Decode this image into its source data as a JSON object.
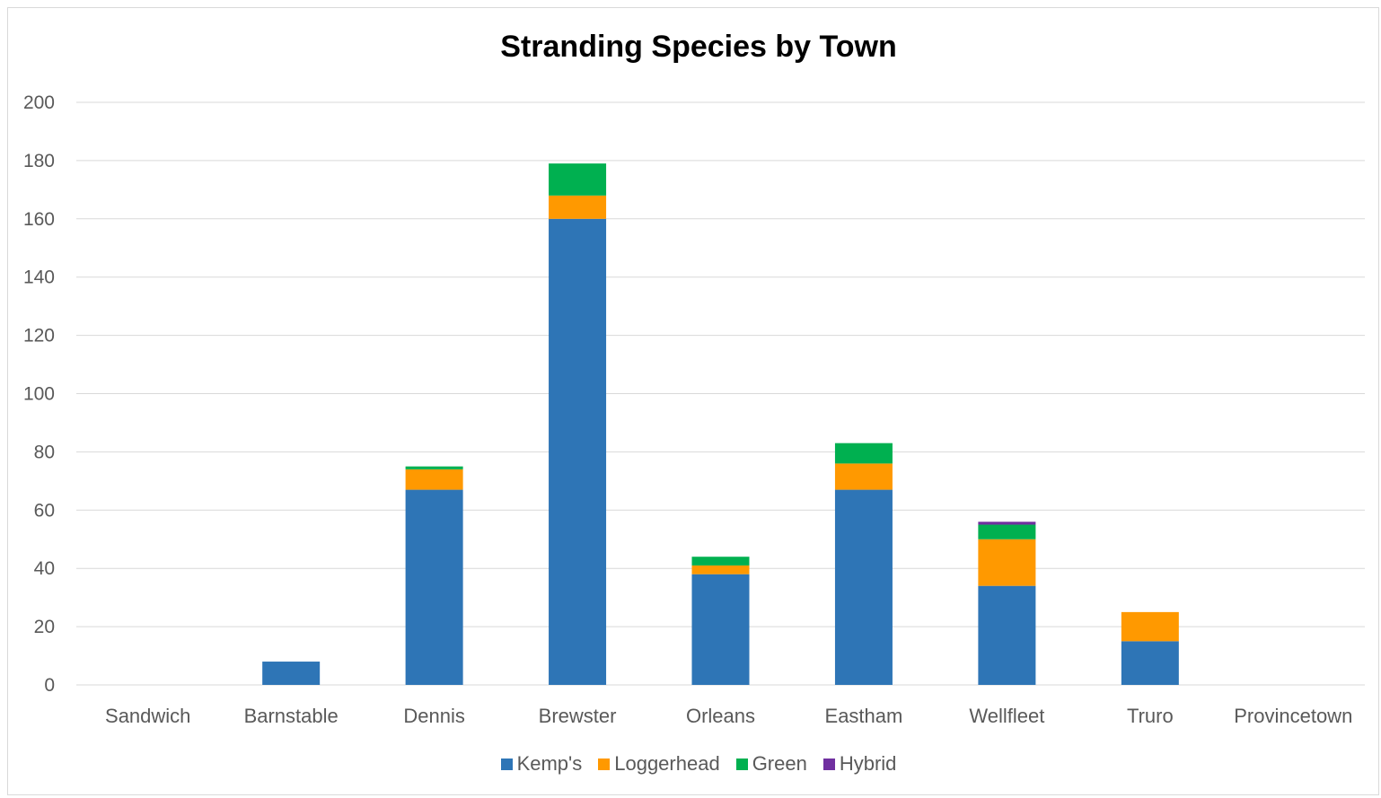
{
  "chart_data": {
    "type": "bar",
    "stacked": true,
    "title": "Stranding Species by Town",
    "xlabel": "",
    "ylabel": "",
    "ylim": [
      0,
      200
    ],
    "yticks": [
      0,
      20,
      40,
      60,
      80,
      100,
      120,
      140,
      160,
      180,
      200
    ],
    "grid": true,
    "legend_position": "bottom",
    "categories": [
      "Sandwich",
      "Barnstable",
      "Dennis",
      "Brewster",
      "Orleans",
      "Eastham",
      "Wellfleet",
      "Truro",
      "Provincetown"
    ],
    "series": [
      {
        "name": "Kemp's",
        "color": "#2e75b6",
        "values": [
          0,
          8,
          67,
          160,
          38,
          67,
          34,
          15,
          0
        ]
      },
      {
        "name": "Loggerhead",
        "color": "#ff9900",
        "values": [
          0,
          0,
          7,
          8,
          3,
          9,
          16,
          10,
          0
        ]
      },
      {
        "name": "Green",
        "color": "#00b050",
        "values": [
          0,
          0,
          1,
          11,
          3,
          7,
          5,
          0,
          0
        ]
      },
      {
        "name": "Hybrid",
        "color": "#7030a0",
        "values": [
          0,
          0,
          0,
          0,
          0,
          0,
          1,
          0,
          0
        ]
      }
    ]
  }
}
